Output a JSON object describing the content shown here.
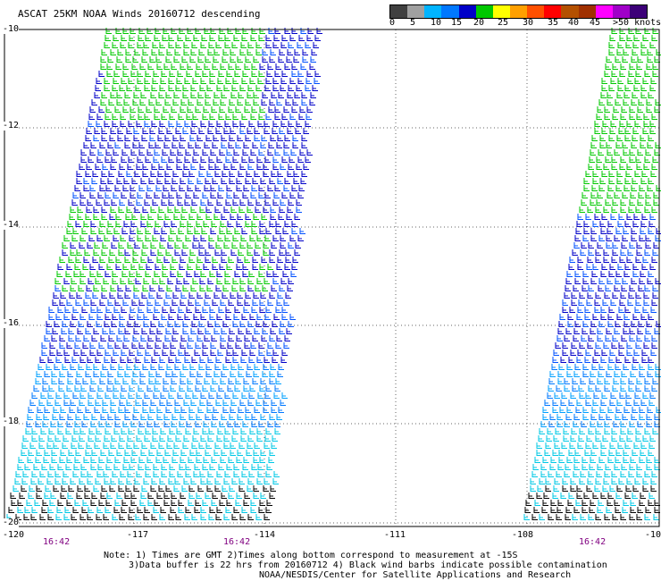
{
  "title": "ASCAT 25KM NOAA Winds 20160712 descending",
  "legend": {
    "colors": [
      "#404040",
      "#a0a0a0",
      "#00b4ff",
      "#0078ff",
      "#0000c8",
      "#00c800",
      "#ffff00",
      "#ffa000",
      "#ff5000",
      "#ff0000",
      "#b45000",
      "#a03000",
      "#ff00ff",
      "#a000c8",
      "#3c0078"
    ],
    "labels": [
      "0",
      "5",
      "10",
      "15",
      "20",
      "25",
      "30",
      "35",
      "40",
      "45",
      ">50 knots"
    ]
  },
  "lat_labels": [
    "-10",
    "-12",
    "-14",
    "-16",
    "-18",
    "-20"
  ],
  "lon_labels": [
    "-120",
    "-117",
    "-114",
    "-111",
    "-108",
    "-10"
  ],
  "times": [
    "16:42",
    "16:42",
    "16:42"
  ],
  "notes": [
    "Note: 1) Times are GMT 2)Times along bottom correspond to measurement at -15S",
    "3)Data buffer is 22 hrs from 20160712 4) Black wind barbs indicate possible contamination",
    "NOAA/NESDIS/Center for Satellite Applications and Research"
  ]
}
